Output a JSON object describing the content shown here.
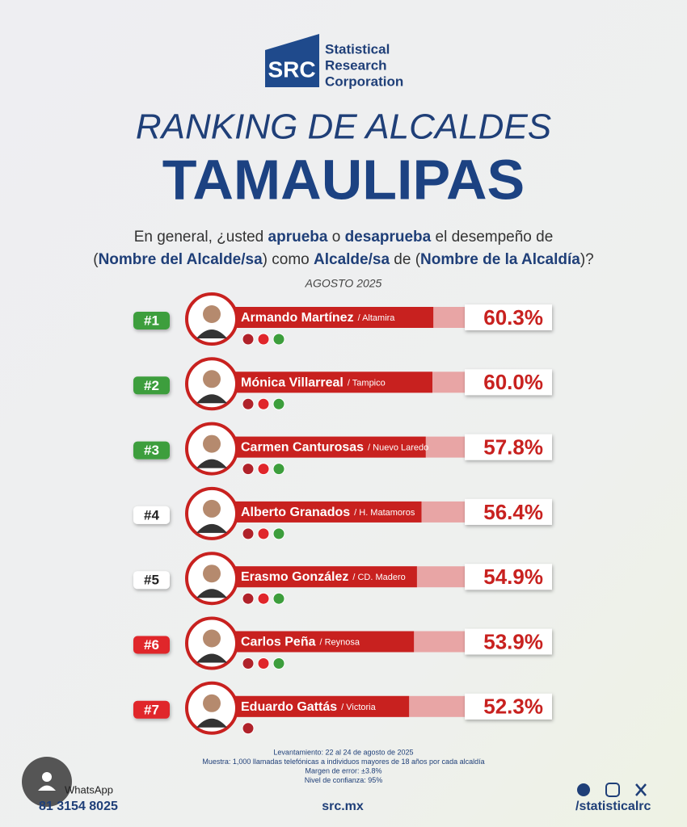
{
  "brand": {
    "logo": "SRC",
    "name_lines": [
      "Statistical",
      "Research",
      "Corporation"
    ]
  },
  "title": "RANKING DE ALCALDES",
  "state": "TAMAULIPAS",
  "question": [
    [
      {
        "text": "En general, ¿usted ",
        "bold": false
      },
      {
        "text": "aprueba",
        "bold": true
      },
      {
        "text": " o ",
        "bold": false
      },
      {
        "text": "desaprueba",
        "bold": true
      },
      {
        "text": " el desempeño de",
        "bold": false
      }
    ],
    [
      {
        "text": "(",
        "bold": false
      },
      {
        "text": "Nombre del Alcalde/sa",
        "bold": true
      },
      {
        "text": ") como ",
        "bold": false
      },
      {
        "text": "Alcalde/sa",
        "bold": true
      },
      {
        "text": " de (",
        "bold": false
      },
      {
        "text": "Nombre de la Alcaldía",
        "bold": true
      },
      {
        "text": ")?",
        "bold": false
      }
    ]
  ],
  "date": "AGOSTO 2025",
  "ranking": [
    {
      "rank": "#1",
      "name": "Armando Martínez",
      "city": "/ Altamira",
      "value": 60.3,
      "value_label": "60.3%",
      "badge": "green",
      "parties": 3
    },
    {
      "rank": "#2",
      "name": "Mónica Villarreal",
      "city": "/ Tampico",
      "value": 60.0,
      "value_label": "60.0%",
      "badge": "green",
      "parties": 3
    },
    {
      "rank": "#3",
      "name": "Carmen Canturosas",
      "city": "/ Nuevo Laredo",
      "value": 57.8,
      "value_label": "57.8%",
      "badge": "green",
      "parties": 3
    },
    {
      "rank": "#4",
      "name": "Alberto Granados",
      "city": "/ H. Matamoros",
      "value": 56.4,
      "value_label": "56.4%",
      "badge": "white",
      "parties": 3
    },
    {
      "rank": "#5",
      "name": "Erasmo González",
      "city": "/ CD. Madero",
      "value": 54.9,
      "value_label": "54.9%",
      "badge": "white",
      "parties": 3
    },
    {
      "rank": "#6",
      "name": "Carlos Peña",
      "city": "/ Reynosa",
      "value": 53.9,
      "value_label": "53.9%",
      "badge": "red",
      "parties": 3
    },
    {
      "rank": "#7",
      "name": "Eduardo Gattás",
      "city": "/ Victoria",
      "value": 52.3,
      "value_label": "52.3%",
      "badge": "red",
      "parties": 1
    }
  ],
  "methodology": [
    "Levantamiento: 22 al 24 de agosto de 2025",
    "Muestra: 1,000 llamadas telefónicas a individuos mayores de 18 años por cada alcaldía",
    "Margen de error: ±3.8%",
    "Nivel de confianza: 95%"
  ],
  "footer": {
    "whatsapp_label": "WhatsApp",
    "phone": "81 3154 8025",
    "website": "src.mx",
    "social": "/statisticalrc"
  }
}
